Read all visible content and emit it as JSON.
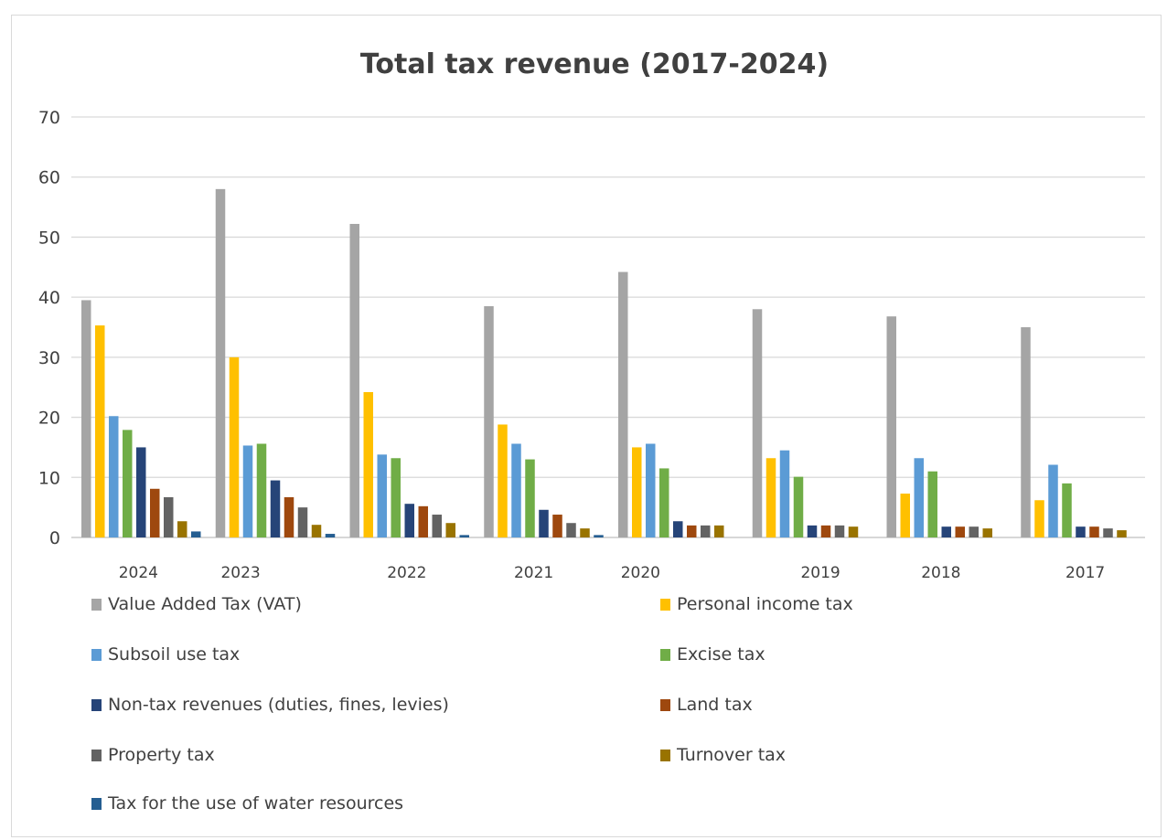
{
  "chart_data": {
    "type": "bar",
    "title": "Total tax revenue (2017-2024)",
    "xlabel": "",
    "ylabel": "",
    "ylim": [
      0,
      70
    ],
    "yticks": [
      "0",
      "10",
      "20",
      "30",
      "40",
      "50",
      "60",
      "70"
    ],
    "grid": true,
    "legend_position": "bottom",
    "categories": [
      "2024",
      "2023",
      "2022",
      "2021",
      "2020",
      "2019",
      "2018",
      "2017"
    ],
    "series": [
      {
        "name": "Value Added Tax (VAT)",
        "color": "#a5a5a5",
        "values": [
          39.5,
          58,
          52.2,
          38.5,
          44.2,
          38,
          36.8,
          35
        ]
      },
      {
        "name": "Personal income tax",
        "color": "#ffc000",
        "values": [
          35.3,
          30,
          24.2,
          18.8,
          15,
          13.2,
          7.3,
          6.2
        ]
      },
      {
        "name": "Subsoil use tax",
        "color": "#5b9bd5",
        "values": [
          20.2,
          15.3,
          13.8,
          15.6,
          15.6,
          14.5,
          13.2,
          12.1
        ]
      },
      {
        "name": "Excise tax",
        "color": "#70ad47",
        "values": [
          17.9,
          15.6,
          13.2,
          13,
          11.5,
          10.1,
          11,
          9
        ]
      },
      {
        "name": "Non-tax revenues (duties, fines, levies)",
        "color": "#264478",
        "values": [
          15,
          9.5,
          5.6,
          4.6,
          2.7,
          2,
          1.8,
          1.8
        ]
      },
      {
        "name": "Land tax",
        "color": "#9e480e",
        "values": [
          8.1,
          6.7,
          5.2,
          3.8,
          2,
          2,
          1.8,
          1.8
        ]
      },
      {
        "name": "Property tax",
        "color": "#636363",
        "values": [
          6.7,
          5,
          3.8,
          2.4,
          2,
          2,
          1.8,
          1.5
        ]
      },
      {
        "name": "Turnover tax",
        "color": "#997300",
        "values": [
          2.7,
          2.1,
          2.4,
          1.5,
          2,
          1.8,
          1.5,
          1.2
        ]
      },
      {
        "name": "Tax for the use of water resources",
        "color": "#255e91",
        "values": [
          1,
          0.6,
          0.4,
          0.4,
          0,
          0,
          0,
          0
        ]
      }
    ]
  }
}
